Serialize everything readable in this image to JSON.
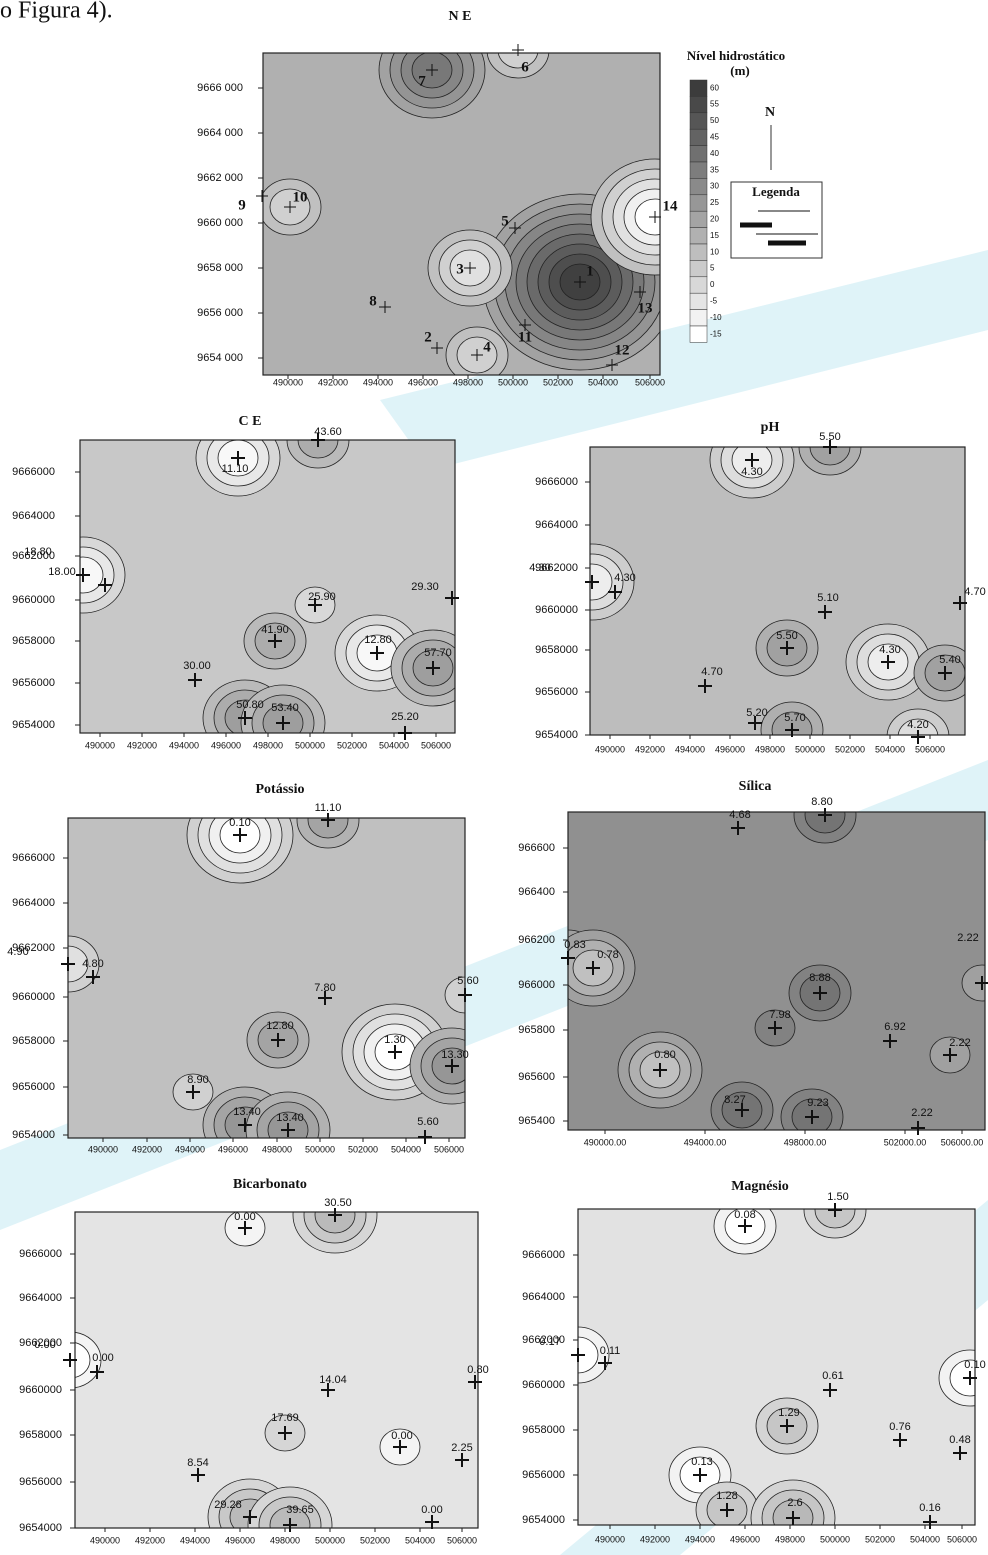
{
  "header": {
    "text": "o Figura 4)."
  },
  "legend": {
    "title": "Nível hidrostático",
    "unit": "(m)",
    "scale": [
      "60",
      "55",
      "50",
      "45",
      "40",
      "35",
      "30",
      "25",
      "20",
      "15",
      "10",
      "5",
      "0",
      "-5",
      "-10",
      "-15"
    ],
    "north": "N",
    "box_title": "Legenda"
  },
  "panels": [
    {
      "title": "N E",
      "yticks": [
        "9666 000",
        "9664 000",
        "9662 000",
        "9660 000",
        "9658 000",
        "9656 000",
        "9654 000"
      ],
      "xticks": [
        "490000",
        "492000",
        "494000",
        "496000",
        "498000",
        "500000",
        "502000",
        "504000",
        "506000"
      ],
      "points": [
        "1",
        "2",
        "3",
        "4",
        "5",
        "6",
        "7",
        "8",
        "9",
        "10",
        "11",
        "12",
        "13",
        "14"
      ]
    },
    {
      "title": "C E",
      "yticks": [
        "9666000",
        "9664000",
        "9662000",
        "9660000",
        "9658000",
        "9656000",
        "9654000"
      ],
      "xticks": [
        "490000",
        "492000",
        "494000",
        "496000",
        "498000",
        "500000",
        "502000",
        "504000",
        "506000"
      ],
      "points": [
        "43.60",
        "11.10",
        "18.80",
        "18.00",
        "29.30",
        "25.90",
        "41.90",
        "12.80",
        "57.70",
        "30.00",
        "50.80",
        "53.40",
        "25.20"
      ]
    },
    {
      "title": "pH",
      "yticks": [
        "9666000",
        "9664000",
        "9662000",
        "9660000",
        "9658000",
        "9656000",
        "9654000"
      ],
      "xticks": [
        "490000",
        "492000",
        "494000",
        "496000",
        "498000",
        "500000",
        "502000",
        "504000",
        "506000"
      ],
      "points": [
        "5.50",
        "4.30",
        "4.30",
        "4.30",
        "4.70",
        "5.10",
        "5.50",
        "4.30",
        "5.40",
        "4.70",
        "5.20",
        "5.70",
        "4.20"
      ]
    },
    {
      "title": "Potássio",
      "yticks": [
        "9666000",
        "9664000",
        "9662000",
        "9660000",
        "9658000",
        "9656000",
        "9654000"
      ],
      "xticks": [
        "490000",
        "492000",
        "494000",
        "496000",
        "498000",
        "500000",
        "502000",
        "504000",
        "506000"
      ],
      "points": [
        "11.10",
        "0.10",
        "4.90",
        "4.80",
        "7.80",
        "5.60",
        "12.80",
        "1.30",
        "13.30",
        "8.90",
        "13.40",
        "13.40",
        "5.60"
      ]
    },
    {
      "title": "Sílica",
      "yticks": [
        "966600",
        "966400",
        "966200",
        "966000",
        "965800",
        "965600",
        "965400"
      ],
      "xticks": [
        "490000.00",
        "494000.00",
        "498000.00",
        "502000.00",
        "506000.00"
      ],
      "points": [
        "8.80",
        "4.68",
        "0.83",
        "0.78",
        "2.22",
        "8.88",
        "7.98",
        "6.92",
        "2.22",
        "0.80",
        "8.27",
        "9.23",
        "2.22"
      ]
    },
    {
      "title": "Bicarbonato",
      "yticks": [
        "9666000",
        "9664000",
        "9662000",
        "9660000",
        "9658000",
        "9656000",
        "9654000"
      ],
      "xticks": [
        "490000",
        "492000",
        "494000",
        "496000",
        "498000",
        "500000",
        "502000",
        "504000",
        "506000"
      ],
      "points": [
        "30.50",
        "0.00",
        "0.00",
        "0.00",
        "0.80",
        "14.04",
        "17.69",
        "0.00",
        "2.25",
        "8.54",
        "29.28",
        "39.65",
        "0.00"
      ]
    },
    {
      "title": "Magnésio",
      "yticks": [
        "9666000",
        "9664000",
        "9662000",
        "9660000",
        "9658000",
        "9656000",
        "9654000"
      ],
      "xticks": [
        "490000",
        "492000",
        "494000",
        "496000",
        "498000",
        "500000",
        "502000",
        "504000",
        "506000"
      ],
      "points": [
        "1.50",
        "0.08",
        "0.17",
        "0.11",
        "0.10",
        "0.61",
        "1.29",
        "0.76",
        "0.48",
        "0.13",
        "1.28",
        "2.6",
        "0.16"
      ]
    }
  ]
}
